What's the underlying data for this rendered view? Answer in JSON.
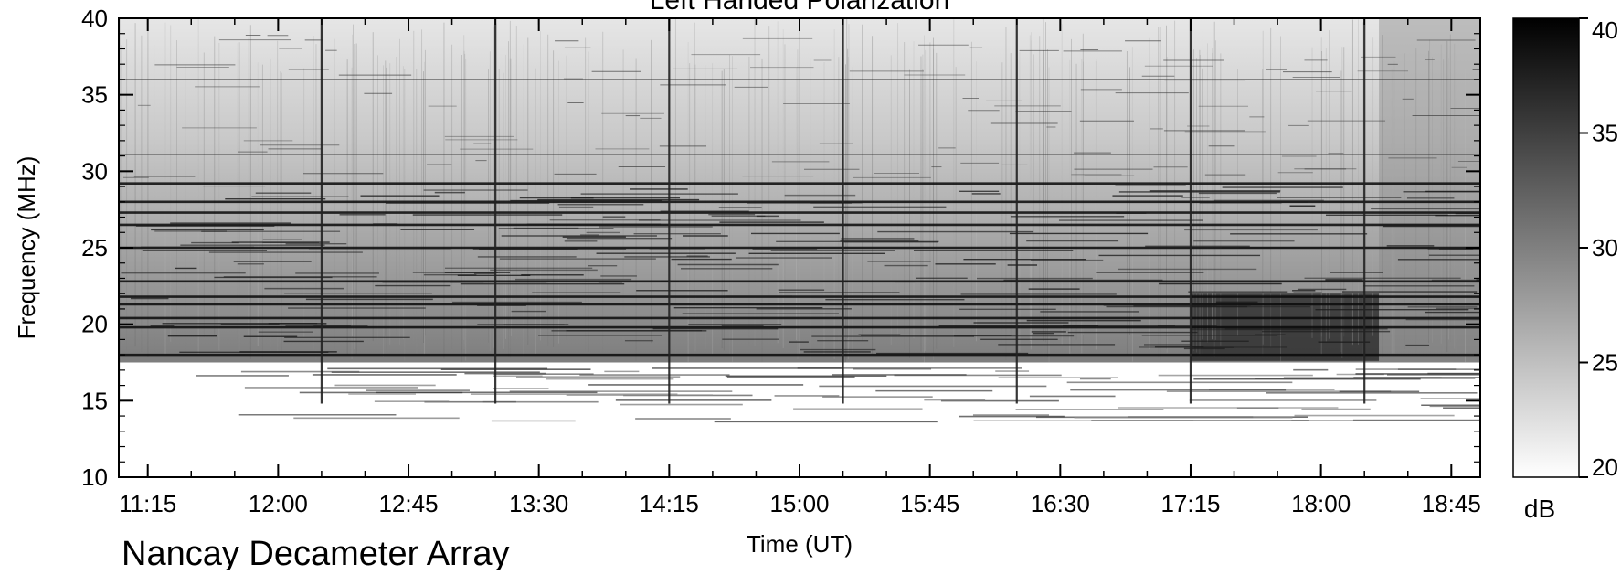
{
  "chart_data": {
    "type": "heatmap",
    "title": "Left Handed Polarization",
    "xlabel": "Time (UT)",
    "ylabel": "Frequency (MHz)",
    "footer": "Nancay Decameter Array",
    "x_start": "11:05",
    "x_end": "18:55",
    "x_ticks": [
      "11:15",
      "12:00",
      "12:45",
      "13:30",
      "14:15",
      "15:00",
      "15:45",
      "16:30",
      "17:15",
      "18:00",
      "18:45"
    ],
    "ylim": [
      10,
      40
    ],
    "y_ticks": [
      10,
      15,
      20,
      25,
      30,
      35,
      40
    ],
    "colorbar": {
      "label": "dB",
      "range": [
        20,
        40
      ],
      "ticks": [
        20,
        25,
        30,
        35,
        40
      ],
      "colormap": "grayscale",
      "low_color": "#ffffff",
      "high_color": "#000000"
    },
    "features": {
      "cutoff_frequency_mhz": 17.5,
      "strong_bands_mhz": [
        18.0,
        19.8,
        20.4,
        21.3,
        21.8,
        22.8,
        25.0,
        26.5,
        27.3,
        28.0,
        29.2,
        31.1,
        36.0
      ],
      "vertical_marker_times": [
        "11:05",
        "12:15",
        "13:15",
        "14:15",
        "15:15",
        "16:15",
        "17:15",
        "18:15"
      ],
      "late_activity_start": "18:20"
    }
  }
}
